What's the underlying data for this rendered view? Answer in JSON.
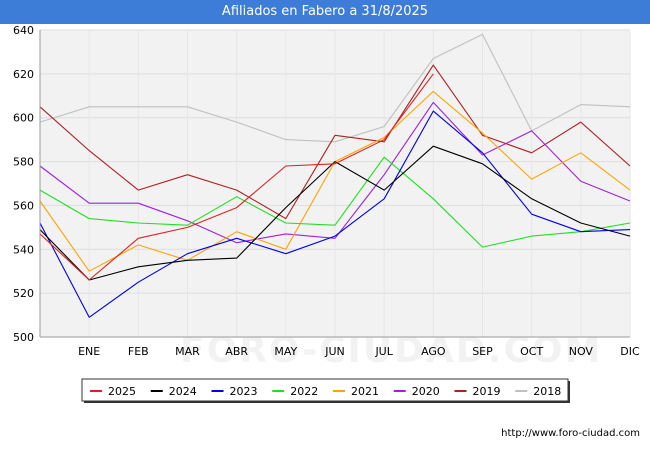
{
  "header": {
    "title": "Afiliados en Fabero a 31/8/2025"
  },
  "footer": {
    "url": "http://www.foro-ciudad.com"
  },
  "watermark": "FORO-CIUDAD.COM",
  "colors": {
    "title_bg": "#3d7dd8",
    "plot_bg": "#f2f2f2",
    "grid": "#dddddd"
  },
  "chart_data": {
    "type": "line",
    "title": "Afiliados en Fabero a 31/8/2025",
    "xlabel": "",
    "ylabel": "",
    "categories": [
      "",
      "ENE",
      "FEB",
      "MAR",
      "ABR",
      "MAY",
      "JUN",
      "JUL",
      "AGO",
      "SEP",
      "OCT",
      "NOV",
      "DIC"
    ],
    "ylim": [
      500,
      640
    ],
    "yticks": [
      500,
      520,
      540,
      560,
      580,
      600,
      620,
      640
    ],
    "grid": true,
    "legend_position": "bottom",
    "series": [
      {
        "name": "2025",
        "color": "#e02020",
        "values": [
          547,
          526,
          545,
          550,
          559,
          578,
          579,
          590,
          620,
          null,
          null,
          null,
          null
        ]
      },
      {
        "name": "2024",
        "color": "#000000",
        "values": [
          549,
          526,
          532,
          535,
          536,
          559,
          580,
          567,
          587,
          579,
          563,
          552,
          546
        ]
      },
      {
        "name": "2023",
        "color": "#0000ee",
        "values": [
          552,
          509,
          525,
          538,
          545,
          538,
          546,
          563,
          603,
          584,
          556,
          548,
          549
        ]
      },
      {
        "name": "2022",
        "color": "#20e020",
        "values": [
          567,
          554,
          552,
          551,
          564,
          552,
          551,
          582,
          563,
          541,
          546,
          548,
          552
        ]
      },
      {
        "name": "2021",
        "color": "#ffa500",
        "values": [
          562,
          530,
          542,
          535,
          548,
          540,
          580,
          591,
          612,
          593,
          572,
          584,
          567
        ]
      },
      {
        "name": "2020",
        "color": "#a020e0",
        "values": [
          578,
          561,
          561,
          553,
          543,
          547,
          545,
          574,
          607,
          583,
          594,
          571,
          562
        ]
      },
      {
        "name": "2019",
        "color": "#b02020",
        "values": [
          605,
          585,
          567,
          574,
          567,
          554,
          592,
          589,
          624,
          592,
          584,
          598,
          578
        ]
      },
      {
        "name": "2018",
        "color": "#c0c0c0",
        "values": [
          598,
          605,
          605,
          605,
          598,
          590,
          589,
          596,
          627,
          638,
          594,
          606,
          605
        ]
      }
    ]
  }
}
